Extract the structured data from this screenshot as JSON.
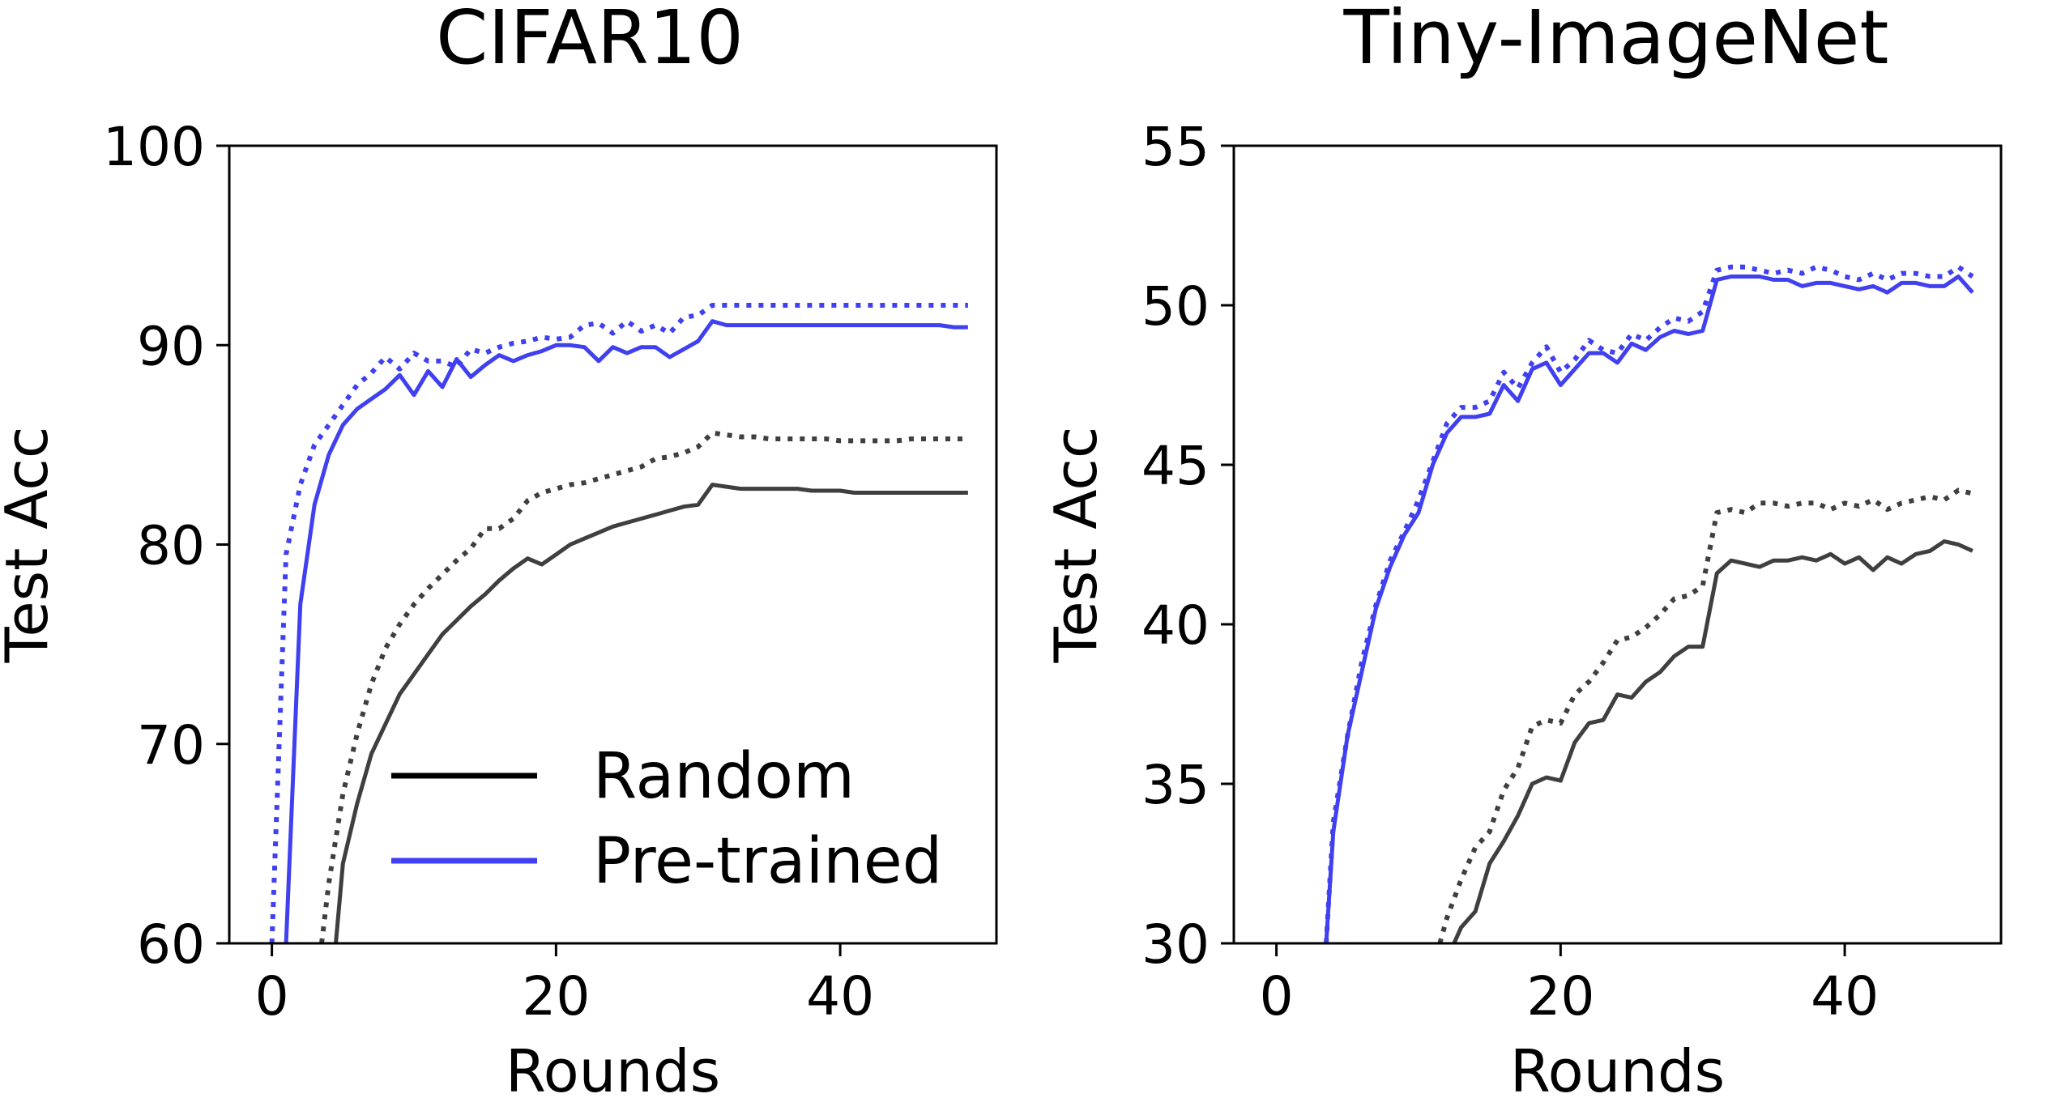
{
  "figure": {
    "background": "#ffffff",
    "colors": {
      "random": "#3f3f3f",
      "pretrained": "#4040f0"
    }
  },
  "chart_data": [
    {
      "type": "line",
      "title": "CIFAR10",
      "xlabel": "Rounds",
      "ylabel": "Test Acc",
      "xlim": [
        -3,
        51
      ],
      "ylim": [
        60,
        100
      ],
      "xticks": [
        0,
        20,
        40
      ],
      "yticks": [
        60,
        70,
        80,
        90,
        100
      ],
      "grid": false,
      "legend": {
        "placement": "lower-right",
        "entries": [
          {
            "label": "Random",
            "color": "#000000",
            "style": "solid"
          },
          {
            "label": "Pre-trained",
            "color": "#4040f0",
            "style": "solid"
          }
        ]
      },
      "series": [
        {
          "name": "Random (solid)",
          "color": "#3f3f3f",
          "style": "solid",
          "x": [
            4.5,
            5,
            6,
            7,
            8,
            9,
            10,
            11,
            12,
            13,
            14,
            15,
            16,
            17,
            18,
            19,
            20,
            21,
            22,
            23,
            24,
            25,
            26,
            27,
            28,
            29,
            30,
            31,
            32,
            33,
            34,
            35,
            36,
            37,
            38,
            39,
            40,
            41,
            42,
            43,
            44,
            45,
            46,
            47,
            48,
            49
          ],
          "values": [
            60,
            64,
            67,
            69.5,
            71,
            72.5,
            73.5,
            74.5,
            75.5,
            76.2,
            76.9,
            77.5,
            78.2,
            78.8,
            79.3,
            79.0,
            79.5,
            80.0,
            80.3,
            80.6,
            80.9,
            81.1,
            81.3,
            81.5,
            81.7,
            81.9,
            82.0,
            83.0,
            82.9,
            82.8,
            82.8,
            82.8,
            82.8,
            82.8,
            82.7,
            82.7,
            82.7,
            82.6,
            82.6,
            82.6,
            82.6,
            82.6,
            82.6,
            82.6,
            82.6,
            82.6
          ]
        },
        {
          "name": "Random (dotted)",
          "color": "#3f3f3f",
          "style": "dotted",
          "x": [
            3.5,
            4,
            5,
            6,
            7,
            8,
            9,
            10,
            11,
            12,
            13,
            14,
            15,
            16,
            17,
            18,
            19,
            20,
            21,
            22,
            23,
            24,
            25,
            26,
            27,
            28,
            29,
            30,
            31,
            32,
            33,
            34,
            35,
            36,
            37,
            38,
            39,
            40,
            41,
            42,
            43,
            44,
            45,
            46,
            47,
            48,
            49
          ],
          "values": [
            60,
            63,
            67.5,
            70.5,
            73,
            74.8,
            76,
            77,
            77.8,
            78.5,
            79.2,
            79.8,
            80.8,
            80.8,
            81.3,
            82.2,
            82.6,
            82.8,
            83.0,
            83.1,
            83.3,
            83.5,
            83.7,
            83.9,
            84.3,
            84.4,
            84.6,
            84.9,
            85.6,
            85.5,
            85.4,
            85.4,
            85.3,
            85.3,
            85.3,
            85.3,
            85.3,
            85.2,
            85.2,
            85.2,
            85.2,
            85.2,
            85.3,
            85.3,
            85.3,
            85.3,
            85.3
          ]
        },
        {
          "name": "Pre-trained (solid)",
          "color": "#4040f0",
          "style": "solid",
          "x": [
            1,
            2,
            3,
            4,
            5,
            6,
            7,
            8,
            9,
            10,
            11,
            12,
            13,
            14,
            15,
            16,
            17,
            18,
            19,
            20,
            21,
            22,
            23,
            24,
            25,
            26,
            27,
            28,
            29,
            30,
            31,
            32,
            33,
            34,
            35,
            36,
            37,
            38,
            39,
            40,
            41,
            42,
            43,
            44,
            45,
            46,
            47,
            48,
            49
          ],
          "values": [
            60,
            77,
            82,
            84.5,
            86,
            86.8,
            87.3,
            87.8,
            88.5,
            87.5,
            88.7,
            87.9,
            89.3,
            88.4,
            89.0,
            89.5,
            89.2,
            89.5,
            89.7,
            90.0,
            90.0,
            89.9,
            89.2,
            89.9,
            89.6,
            89.9,
            89.9,
            89.4,
            89.8,
            90.2,
            91.2,
            91.0,
            91.0,
            91.0,
            91.0,
            91.0,
            91.0,
            91.0,
            91.0,
            91.0,
            91.0,
            91.0,
            91.0,
            91.0,
            91.0,
            91.0,
            91.0,
            90.9,
            90.9
          ]
        },
        {
          "name": "Pre-trained (dotted)",
          "color": "#4040f0",
          "style": "dotted",
          "x": [
            0,
            1,
            2,
            3,
            4,
            5,
            6,
            7,
            8,
            9,
            10,
            11,
            12,
            13,
            14,
            15,
            16,
            17,
            18,
            19,
            20,
            21,
            22,
            23,
            24,
            25,
            26,
            27,
            28,
            29,
            30,
            31,
            32,
            33,
            34,
            35,
            36,
            37,
            38,
            39,
            40,
            41,
            42,
            43,
            44,
            45,
            46,
            47,
            48,
            49
          ],
          "values": [
            60,
            79.5,
            83,
            85,
            86,
            87,
            88,
            88.6,
            89.4,
            88.8,
            89.6,
            89.2,
            89.2,
            88.9,
            89.8,
            89.6,
            89.9,
            90.1,
            90.2,
            90.4,
            90.3,
            90.4,
            91.0,
            91.1,
            90.6,
            91.2,
            90.7,
            91.0,
            90.6,
            91.4,
            91.5,
            92.0,
            92.0,
            92.0,
            92.0,
            92.0,
            92.0,
            92.0,
            92.0,
            92.0,
            92.0,
            92.0,
            92.0,
            92.0,
            92.0,
            92.0,
            92.0,
            92.0,
            92.0,
            92.0
          ]
        }
      ]
    },
    {
      "type": "line",
      "title": "Tiny-ImageNet",
      "xlabel": "Rounds",
      "ylabel": "Test Acc",
      "xlim": [
        -3,
        51
      ],
      "ylim": [
        30,
        55
      ],
      "xticks": [
        0,
        20,
        40
      ],
      "yticks": [
        30,
        35,
        40,
        45,
        50,
        55
      ],
      "grid": false,
      "series": [
        {
          "name": "Random (solid)",
          "color": "#3f3f3f",
          "style": "solid",
          "x": [
            12.5,
            13,
            14,
            15,
            16,
            17,
            18,
            19,
            20,
            21,
            22,
            23,
            24,
            25,
            26,
            27,
            28,
            29,
            30,
            31,
            32,
            33,
            34,
            35,
            36,
            37,
            38,
            39,
            40,
            41,
            42,
            43,
            44,
            45,
            46,
            47,
            48,
            49
          ],
          "values": [
            30,
            30.5,
            31.0,
            32.5,
            33.2,
            34.0,
            35.0,
            35.2,
            35.1,
            36.3,
            36.9,
            37.0,
            37.8,
            37.7,
            38.2,
            38.5,
            39.0,
            39.3,
            39.3,
            41.6,
            42.0,
            41.9,
            41.8,
            42.0,
            42.0,
            42.1,
            42.0,
            42.2,
            41.9,
            42.1,
            41.7,
            42.1,
            41.9,
            42.2,
            42.3,
            42.6,
            42.5,
            42.3
          ]
        },
        {
          "name": "Random (dotted)",
          "color": "#3f3f3f",
          "style": "dotted",
          "x": [
            11.5,
            12,
            13,
            14,
            15,
            16,
            17,
            18,
            19,
            20,
            21,
            22,
            23,
            24,
            25,
            26,
            27,
            28,
            29,
            30,
            31,
            32,
            33,
            34,
            35,
            36,
            37,
            38,
            39,
            40,
            41,
            42,
            43,
            44,
            45,
            46,
            47,
            48,
            49
          ],
          "values": [
            30,
            30.8,
            32,
            33,
            33.5,
            34.8,
            35.5,
            36.8,
            37.0,
            36.9,
            37.8,
            38.2,
            38.8,
            39.5,
            39.6,
            39.9,
            40.3,
            40.8,
            40.9,
            41.2,
            43.5,
            43.6,
            43.5,
            43.8,
            43.8,
            43.7,
            43.8,
            43.8,
            43.6,
            43.8,
            43.7,
            43.9,
            43.6,
            43.8,
            43.9,
            44.0,
            43.9,
            44.2,
            44.1
          ]
        },
        {
          "name": "Pre-trained (solid)",
          "color": "#4040f0",
          "style": "solid",
          "x": [
            3.5,
            4,
            5,
            6,
            7,
            8,
            9,
            10,
            11,
            12,
            13,
            14,
            15,
            16,
            17,
            18,
            19,
            20,
            21,
            22,
            23,
            24,
            25,
            26,
            27,
            28,
            29,
            30,
            31,
            32,
            33,
            34,
            35,
            36,
            37,
            38,
            39,
            40,
            41,
            42,
            43,
            44,
            45,
            46,
            47,
            48,
            49
          ],
          "values": [
            30,
            33.5,
            36.5,
            38.5,
            40.5,
            41.8,
            42.8,
            43.5,
            45.0,
            46.0,
            46.5,
            46.5,
            46.6,
            47.5,
            47.0,
            48.0,
            48.2,
            47.5,
            48.0,
            48.5,
            48.5,
            48.2,
            48.8,
            48.6,
            49.0,
            49.2,
            49.1,
            49.2,
            50.8,
            50.9,
            50.9,
            50.9,
            50.8,
            50.8,
            50.6,
            50.7,
            50.7,
            50.6,
            50.5,
            50.6,
            50.4,
            50.7,
            50.7,
            50.6,
            50.6,
            50.9,
            50.4
          ]
        },
        {
          "name": "Pre-trained (dotted)",
          "color": "#4040f0",
          "style": "dotted",
          "x": [
            3.5,
            4,
            5,
            6,
            7,
            8,
            9,
            10,
            11,
            12,
            13,
            14,
            15,
            16,
            17,
            18,
            19,
            20,
            21,
            22,
            23,
            24,
            25,
            26,
            27,
            28,
            29,
            30,
            31,
            32,
            33,
            34,
            35,
            36,
            37,
            38,
            39,
            40,
            41,
            42,
            43,
            44,
            45,
            46,
            47,
            48,
            49
          ],
          "values": [
            30,
            33.8,
            36.5,
            38.8,
            40.6,
            42.0,
            42.9,
            43.9,
            45.1,
            46.3,
            46.8,
            46.8,
            47.0,
            47.9,
            47.4,
            48.2,
            48.7,
            47.9,
            48.3,
            48.9,
            48.6,
            48.5,
            49.1,
            48.9,
            49.3,
            49.6,
            49.5,
            49.8,
            51.1,
            51.2,
            51.2,
            51.1,
            51.0,
            51.1,
            51.0,
            51.2,
            51.1,
            50.9,
            50.8,
            51.0,
            50.8,
            51.0,
            51.0,
            50.9,
            50.9,
            51.2,
            50.9
          ]
        }
      ]
    }
  ]
}
